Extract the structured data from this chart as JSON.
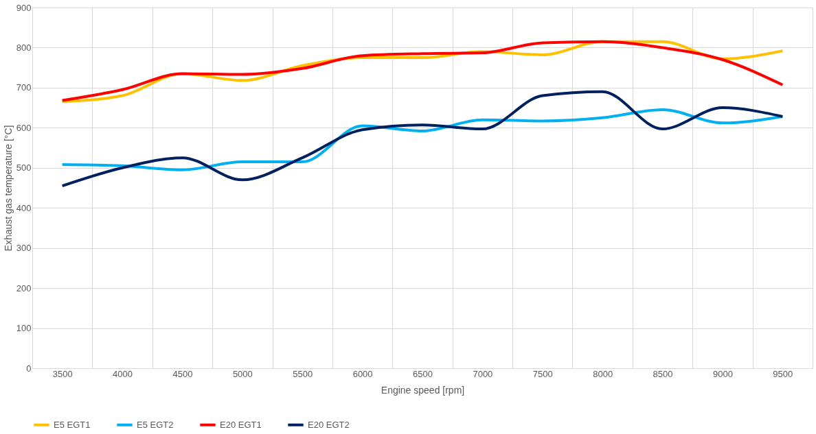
{
  "chart_data": {
    "type": "line",
    "xlabel": "Engine speed [rpm]",
    "ylabel": "Exhaust gas temperature [°C]",
    "categories": [
      "3500",
      "4000",
      "4500",
      "5000",
      "5500",
      "6000",
      "6500",
      "7000",
      "7500",
      "8000",
      "8500",
      "9000",
      "9500"
    ],
    "series": [
      {
        "name": "E5 EGT1",
        "color": "#ffc000",
        "values": [
          665,
          680,
          735,
          718,
          755,
          775,
          775,
          790,
          782,
          815,
          815,
          772,
          792
        ]
      },
      {
        "name": "E5 EGT2",
        "color": "#00b0f0",
        "values": [
          508,
          505,
          495,
          515,
          515,
          605,
          592,
          620,
          617,
          625,
          645,
          612,
          628
        ]
      },
      {
        "name": "E20 EGT1",
        "color": "#ff0000",
        "values": [
          668,
          695,
          735,
          733,
          748,
          780,
          785,
          787,
          812,
          815,
          800,
          770,
          707
        ]
      },
      {
        "name": "E20 EGT2",
        "color": "#002060",
        "values": [
          455,
          500,
          525,
          470,
          525,
          595,
          607,
          597,
          680,
          690,
          597,
          650,
          628
        ]
      }
    ],
    "ylim": [
      0,
      900
    ],
    "yticks": [
      0,
      100,
      200,
      300,
      400,
      500,
      600,
      700,
      800,
      900
    ],
    "grid": true,
    "legend": "bottom",
    "line_style": "solid",
    "marker": "none"
  }
}
